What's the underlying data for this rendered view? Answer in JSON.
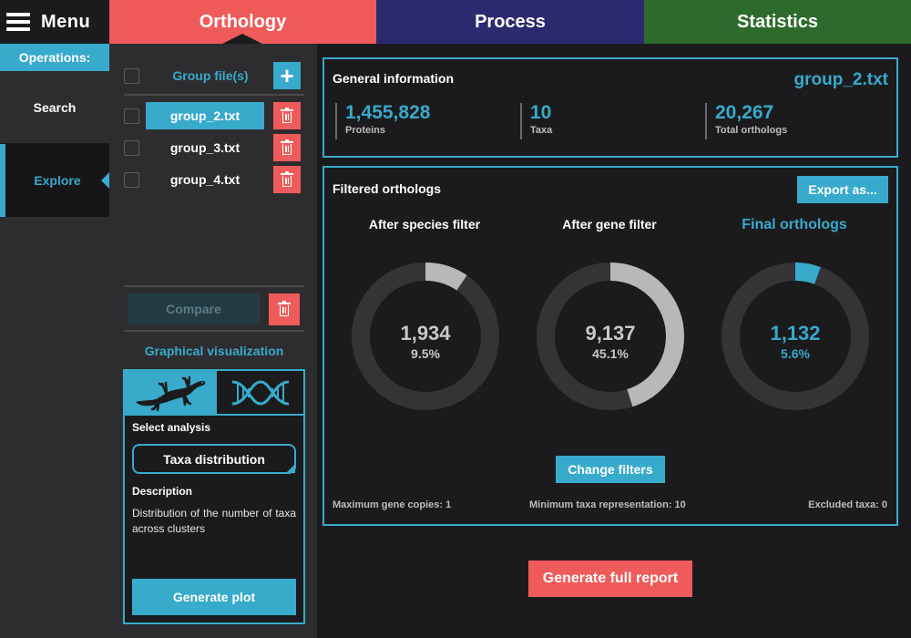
{
  "menu": {
    "label": "Menu"
  },
  "tabs": [
    {
      "label": "Orthology",
      "color": "#ef5b5b",
      "active": true
    },
    {
      "label": "Process",
      "color": "#2b2a6e"
    },
    {
      "label": "Statistics",
      "color": "#2d6b2d"
    }
  ],
  "sidebar": {
    "header": "Operations:",
    "items": [
      {
        "label": "Search"
      },
      {
        "label": "Explore",
        "active": true
      }
    ]
  },
  "groups": {
    "header_label": "Group file(s)",
    "items": [
      {
        "name": "group_2.txt",
        "selected": true
      },
      {
        "name": "group_3.txt"
      },
      {
        "name": "group_4.txt"
      }
    ],
    "compare_label": "Compare"
  },
  "graphical": {
    "title": "Graphical visualization",
    "tabs": [
      {
        "icon": "gecko-icon"
      },
      {
        "icon": "dna-icon"
      }
    ],
    "select_label": "Select analysis",
    "selected_analysis": "Taxa distribution",
    "description_label": "Description",
    "description": "Distribution of the number of taxa across clusters",
    "generate_label": "Generate plot"
  },
  "general_info": {
    "title": "General information",
    "file": "group_2.txt",
    "stats": [
      {
        "value": "1,455,828",
        "label": "Proteins"
      },
      {
        "value": "10",
        "label": "Taxa"
      },
      {
        "value": "20,267",
        "label": "Total orthologs"
      }
    ]
  },
  "filtered": {
    "title": "Filtered orthologs",
    "export_label": "Export as...",
    "donuts": [
      {
        "title": "After species filter",
        "value": "1,934",
        "pct": "9.5%",
        "fraction": 0.095,
        "color": "#b8b8b8"
      },
      {
        "title": "After gene filter",
        "value": "9,137",
        "pct": "45.1%",
        "fraction": 0.451,
        "color": "#b8b8b8"
      },
      {
        "title": "Final orthologs",
        "value": "1,132",
        "pct": "5.6%",
        "fraction": 0.056,
        "color": "#38aacb"
      }
    ],
    "change_filters_label": "Change filters",
    "footer": {
      "max_gene_copies": "Maximum gene copies: 1",
      "min_taxa": "Minimum taxa representation: 10",
      "excluded_taxa": "Excluded taxa: 0"
    }
  },
  "report": {
    "label": "Generate full report"
  },
  "colors": {
    "accent": "#38aacb",
    "danger": "#ef5b5b",
    "panel": "#2d2d2f",
    "background": "#1b1b1d"
  }
}
